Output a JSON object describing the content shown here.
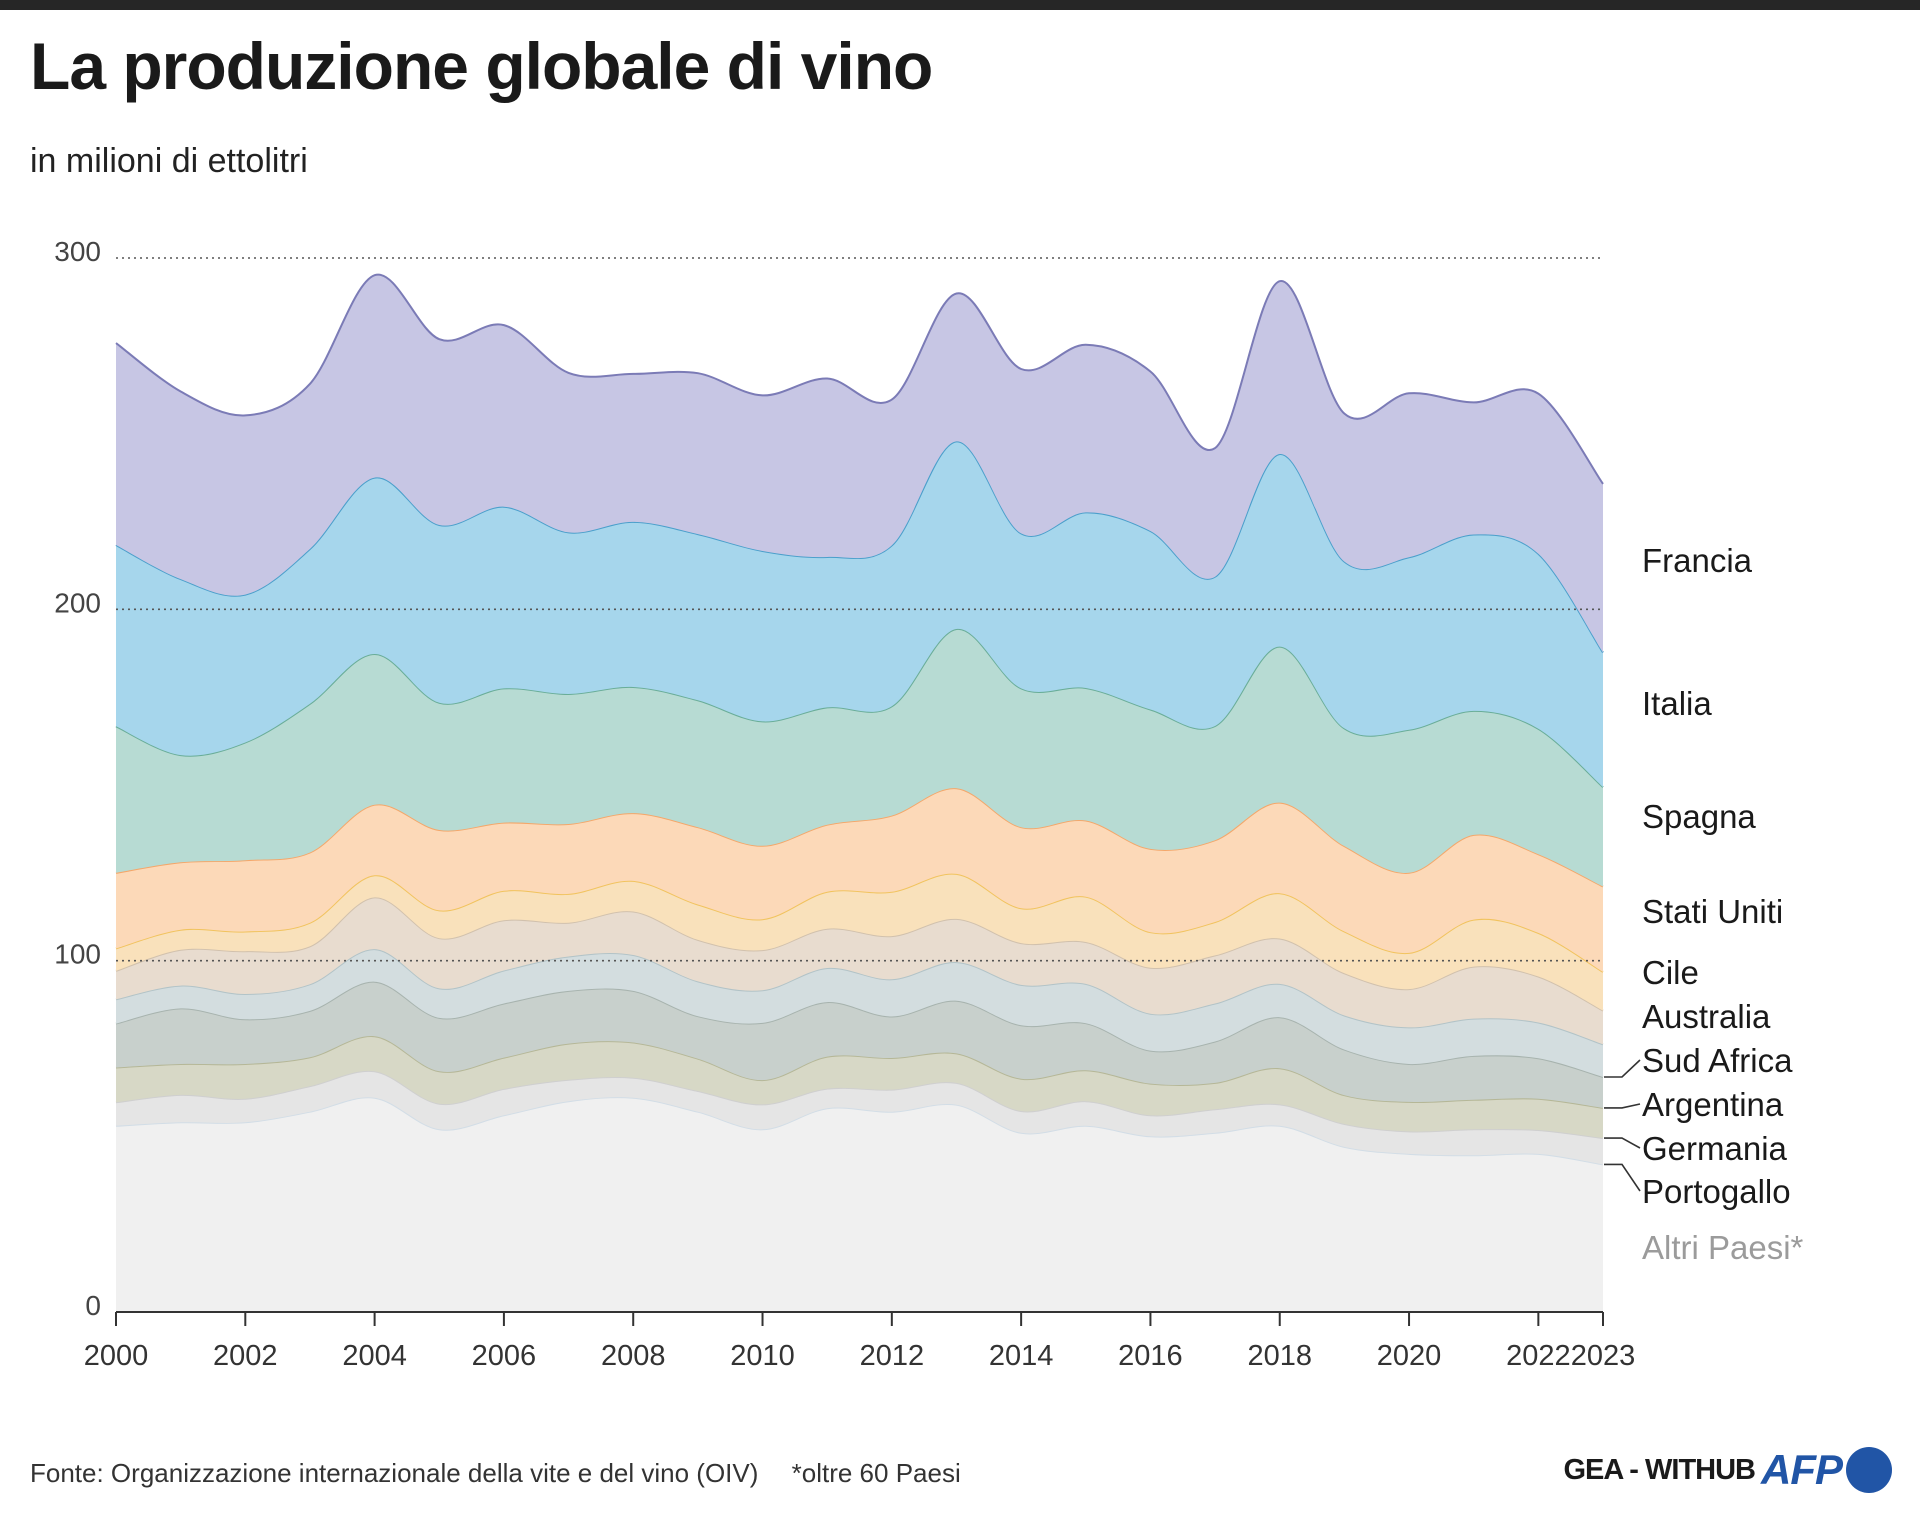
{
  "title": "La produzione globale di vino",
  "subtitle": "in milioni di ettolitri",
  "footer": {
    "source": "Fonte: Organizzazione internazionale della vite e del vino (OIV)",
    "note": "*oltre 60 Paesi",
    "credit": "GEA - WITHUB",
    "logo": "AFP"
  },
  "chart_data": {
    "type": "area",
    "stacked": true,
    "title": "La produzione globale di vino",
    "ylabel": "in milioni di ettolitri",
    "ylim": [
      0,
      300
    ],
    "yticks": [
      0,
      100,
      200,
      300
    ],
    "gridlines": [
      100,
      200,
      300
    ],
    "xlim": [
      2000,
      2023
    ],
    "xticks": [
      2000,
      2002,
      2004,
      2006,
      2008,
      2010,
      2012,
      2014,
      2016,
      2018,
      2020,
      2022,
      2023
    ],
    "x": [
      2000,
      2001,
      2002,
      2003,
      2004,
      2005,
      2006,
      2007,
      2008,
      2009,
      2010,
      2011,
      2012,
      2013,
      2014,
      2015,
      2016,
      2017,
      2018,
      2019,
      2020,
      2021,
      2022,
      2023
    ],
    "series": [
      {
        "name": "Altri Paesi*",
        "color": "#f0f0f0",
        "line": "#d2dde6",
        "values": [
          53,
          54,
          54,
          57,
          61,
          52,
          56,
          60,
          61,
          57,
          52,
          58,
          57,
          59,
          51,
          53,
          50,
          51,
          53,
          47,
          45,
          44.6,
          45,
          42
        ]
      },
      {
        "name": "Portogallo",
        "color": "#e5e5e5",
        "line": "#cfcfcf",
        "values": [
          6.7,
          7.8,
          6.7,
          7.3,
          7.5,
          7.3,
          7.5,
          6.1,
          5.7,
          5.9,
          7.1,
          5.6,
          6.3,
          6.2,
          6.2,
          7.0,
          6.0,
          6.7,
          6.1,
          6.5,
          6.4,
          7.4,
          6.8,
          7.5
        ]
      },
      {
        "name": "Germania",
        "color": "#d7d8c6",
        "line": "#b5b797",
        "values": [
          9.9,
          8.8,
          9.9,
          8.2,
          10.0,
          9.2,
          8.9,
          10.3,
          10.0,
          9.2,
          6.9,
          9.1,
          9.0,
          8.4,
          9.2,
          8.8,
          9.0,
          7.5,
          10.3,
          8.2,
          8.4,
          8.4,
          8.9,
          8.6
        ]
      },
      {
        "name": "Argentina",
        "color": "#c8d0cc",
        "line": "#a7b3ae",
        "values": [
          12.5,
          15.8,
          12.7,
          13.2,
          15.5,
          15.2,
          15.4,
          15.0,
          14.7,
          12.1,
          16.3,
          15.5,
          11.8,
          15.0,
          15.2,
          13.4,
          9.4,
          11.8,
          14.5,
          13.0,
          10.8,
          12.5,
          11.5,
          8.8
        ]
      },
      {
        "name": "Sud Africa",
        "color": "#d3dddf",
        "line": "#b2c3c7",
        "values": [
          6.9,
          6.5,
          7.2,
          7.6,
          9.3,
          8.4,
          9.4,
          9.8,
          10.2,
          9.9,
          9.3,
          9.7,
          10.6,
          11.0,
          11.5,
          11.2,
          10.5,
          10.8,
          9.5,
          9.7,
          10.4,
          10.6,
          10.2,
          9.3
        ]
      },
      {
        "name": "Australia",
        "color": "#e8dccf",
        "line": "#d1c1ad",
        "values": [
          8.1,
          10.2,
          12.2,
          10.8,
          14.7,
          14.3,
          14.3,
          9.6,
          12.4,
          11.8,
          11.4,
          11.2,
          12.3,
          12.3,
          11.9,
          11.9,
          13.1,
          13.7,
          12.9,
          12.0,
          10.9,
          14.8,
          13.1,
          9.6
        ]
      },
      {
        "name": "Cile",
        "color": "#f9e1bb",
        "line": "#f1c35e",
        "values": [
          6.4,
          5.7,
          5.6,
          6.7,
          6.3,
          7.9,
          8.4,
          8.2,
          8.7,
          10.1,
          8.8,
          10.5,
          12.6,
          12.8,
          9.9,
          12.9,
          10.1,
          9.5,
          12.9,
          11.9,
          10.3,
          13.4,
          12.4,
          11.0
        ]
      },
      {
        "name": "Stati Uniti",
        "color": "#fcd9b8",
        "line": "#f4a76a",
        "values": [
          21.5,
          19.2,
          20.3,
          20.0,
          20.1,
          22.9,
          19.4,
          19.9,
          19.3,
          22.0,
          20.9,
          19.1,
          21.7,
          24.4,
          23.1,
          21.7,
          23.7,
          23.3,
          25.8,
          24.3,
          22.8,
          24.1,
          22.4,
          24.3
        ]
      },
      {
        "name": "Spagna",
        "color": "#b7dbd3",
        "line": "#69ad98",
        "values": [
          41.7,
          30.5,
          33.5,
          42.3,
          42.9,
          36.2,
          38.2,
          37.0,
          35.9,
          36.1,
          35.4,
          33.4,
          31.1,
          45.3,
          39.5,
          37.7,
          39.7,
          32.5,
          44.4,
          33.5,
          40.7,
          35.3,
          35.7,
          28.3
        ]
      },
      {
        "name": "Italia",
        "color": "#a6d6ec",
        "line": "#4a9fcb",
        "values": [
          51.6,
          50.1,
          42.1,
          44.1,
          50.2,
          50.6,
          51.7,
          46.0,
          47.0,
          47.3,
          48.5,
          42.8,
          45.8,
          53.4,
          44.1,
          50.0,
          50.8,
          42.5,
          54.8,
          47.5,
          49.1,
          50.2,
          49.8,
          38.3
        ]
      },
      {
        "name": "Francia",
        "color": "#c7c6e4",
        "line": "#7b7bb6",
        "values": [
          57.5,
          53.4,
          51.0,
          47.0,
          57.6,
          52.9,
          51.7,
          45.4,
          42.1,
          45.8,
          44.3,
          50.8,
          41.5,
          42.1,
          46.8,
          47.7,
          45.4,
          36.6,
          49.2,
          42.1,
          46.7,
          37.6,
          45.6,
          48.0
        ]
      }
    ],
    "legend": [
      {
        "key": "francia",
        "label": "Francia"
      },
      {
        "key": "italia",
        "label": "Italia"
      },
      {
        "key": "spagna",
        "label": "Spagna"
      },
      {
        "key": "stati-uniti",
        "label": "Stati Uniti"
      },
      {
        "key": "cile",
        "label": "Cile"
      },
      {
        "key": "australia",
        "label": "Australia"
      },
      {
        "key": "sud-africa",
        "label": "Sud Africa"
      },
      {
        "key": "argentina",
        "label": "Argentina"
      },
      {
        "key": "germania",
        "label": "Germania"
      },
      {
        "key": "portogallo",
        "label": "Portogallo"
      },
      {
        "key": "altri-paesi",
        "label": "Altri Paesi*"
      }
    ]
  }
}
